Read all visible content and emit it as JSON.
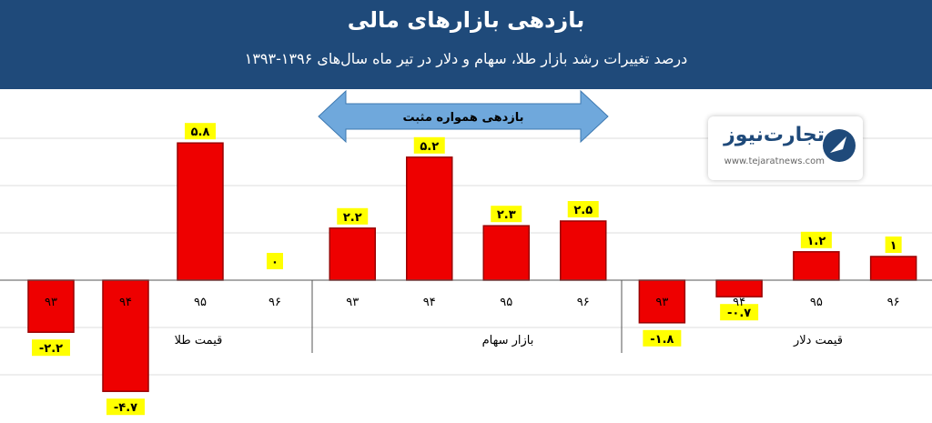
{
  "chart_data": {
    "type": "bar",
    "title": "بازدهی بازارهای مالی",
    "subtitle": "درصد تغییرات رشد بازار طلا، سهام و دلار در تیر ماه سال‌های ۱۳۹۶-۱۳۹۳",
    "groups": [
      {
        "name": "قیمت طلا",
        "categories": [
          "۹۳",
          "۹۴",
          "۹۵",
          "۹۶"
        ],
        "values": [
          -2.2,
          -4.7,
          5.8,
          0
        ],
        "labels": [
          "-۲.۲",
          "-۴.۷",
          "۵.۸",
          "۰"
        ]
      },
      {
        "name": "بازار سهام",
        "categories": [
          "۹۳",
          "۹۴",
          "۹۵",
          "۹۶"
        ],
        "values": [
          2.2,
          5.2,
          2.3,
          2.5
        ],
        "labels": [
          "۲.۲",
          "۵.۲",
          "۲.۳",
          "۲.۵"
        ]
      },
      {
        "name": "قیمت دلار",
        "categories": [
          "۹۳",
          "۹۴",
          "۹۵",
          "۹۶"
        ],
        "values": [
          -1.8,
          -0.7,
          1.2,
          1
        ],
        "labels": [
          "-۱.۸",
          "-۰.۷",
          "۱.۲",
          "۱"
        ]
      }
    ],
    "annotation": "بازدهی همواره مثبت",
    "ylim": [
      -6,
      7
    ],
    "grid": true,
    "colors": {
      "bar": "#ee0000",
      "bar_edge": "#990000",
      "label_bg": "#ffff00",
      "arrow": "#6fa8dc",
      "header": "#1f4a7a"
    }
  },
  "logo": {
    "name": "تجارت‌نیوز",
    "url": "www.tejaratnews.com"
  }
}
